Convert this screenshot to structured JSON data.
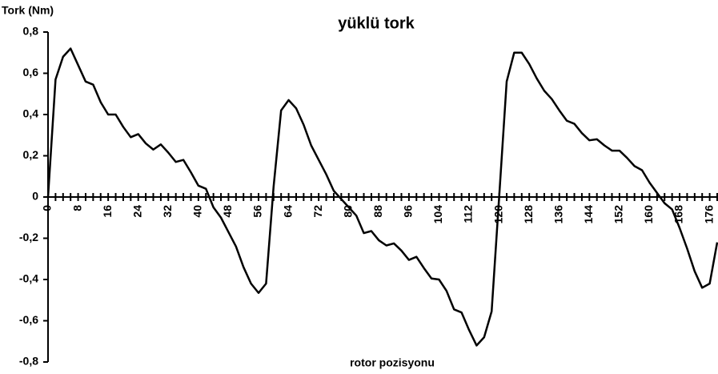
{
  "chart_data": {
    "type": "line",
    "title": "yüklü tork",
    "y_label": "Tork (Nm)",
    "x_label": "rotor pozisyonu",
    "categories": [
      0,
      null,
      null,
      null,
      8,
      null,
      null,
      null,
      16,
      null,
      null,
      null,
      24,
      null,
      null,
      null,
      32,
      null,
      null,
      null,
      40,
      null,
      null,
      null,
      48,
      null,
      null,
      null,
      56,
      null,
      null,
      null,
      64,
      null,
      null,
      null,
      72,
      null,
      null,
      null,
      80,
      null,
      null,
      null,
      88,
      null,
      null,
      null,
      96,
      null,
      null,
      null,
      104,
      null,
      null,
      null,
      112,
      null,
      null,
      null,
      120,
      null,
      null,
      null,
      128,
      null,
      null,
      null,
      136,
      null,
      null,
      null,
      144,
      null,
      null,
      null,
      152,
      null,
      null,
      null,
      160,
      null,
      null,
      null,
      168,
      null,
      null,
      null,
      176,
      null
    ],
    "series": [
      {
        "name": "yüklü tork",
        "color": "#000000",
        "values": [
          0,
          0.57,
          0.68,
          0.72,
          0.64,
          0.56,
          0.545,
          0.46,
          0.4,
          0.4,
          0.34,
          0.29,
          0.305,
          0.26,
          0.23,
          0.255,
          0.215,
          0.17,
          0.18,
          0.12,
          0.055,
          0.04,
          -0.05,
          -0.1,
          -0.17,
          -0.24,
          -0.34,
          -0.42,
          -0.465,
          -0.42,
          0.05,
          0.42,
          0.47,
          0.43,
          0.35,
          0.25,
          0.18,
          0.11,
          0.03,
          -0.01,
          -0.05,
          -0.09,
          -0.175,
          -0.165,
          -0.21,
          -0.235,
          -0.225,
          -0.26,
          -0.305,
          -0.29,
          -0.345,
          -0.395,
          -0.4,
          -0.455,
          -0.545,
          -0.56,
          -0.645,
          -0.72,
          -0.68,
          -0.555,
          0,
          0.56,
          0.7,
          0.7,
          0.645,
          0.575,
          0.515,
          0.475,
          0.42,
          0.37,
          0.355,
          0.31,
          0.275,
          0.28,
          0.25,
          0.225,
          0.225,
          0.19,
          0.15,
          0.13,
          0.07,
          0.02,
          -0.03,
          -0.06,
          -0.15,
          -0.25,
          -0.36,
          -0.44,
          -0.42,
          -0.22
        ]
      }
    ],
    "ylim": [
      -0.8,
      0.8
    ],
    "yticks": [
      {
        "value": -0.8,
        "label": "-0,8"
      },
      {
        "value": -0.6,
        "label": "-0,6"
      },
      {
        "value": -0.4,
        "label": "-0,4"
      },
      {
        "value": -0.2,
        "label": "-0,2"
      },
      0,
      {
        "value": 0.2,
        "label": "0,2"
      },
      {
        "value": 0.4,
        "label": "0,4"
      },
      {
        "value": 0.6,
        "label": "0,6"
      },
      {
        "value": 0.8,
        "label": "0,8"
      }
    ],
    "grid": false,
    "legend": false
  }
}
